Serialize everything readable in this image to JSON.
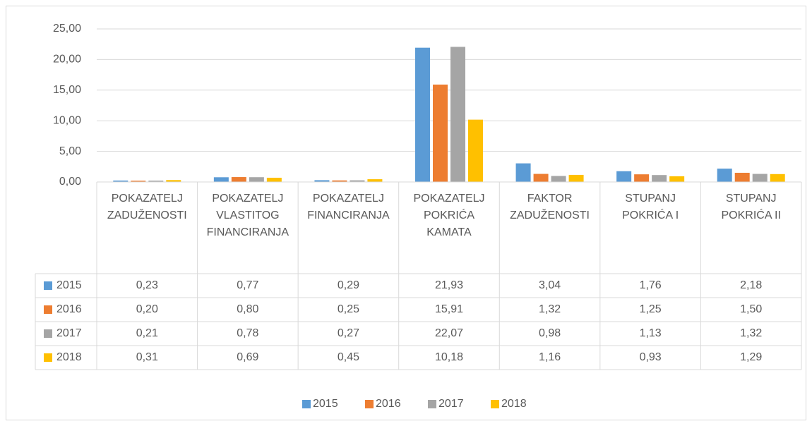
{
  "chart_data": {
    "type": "bar",
    "categories": [
      "POKAZATELJ ZADUŽENOSTI",
      "POKAZATELJ VLASTITOG FINANCIRANJA",
      "POKAZATELJ FINANCIRANJA",
      "POKAZATELJ POKRIĆA KAMATA",
      "FAKTOR ZADUŽENOSTI",
      "STUPANJ POKRIĆA I",
      "STUPANJ POKRIĆA II"
    ],
    "series": [
      {
        "name": "2015",
        "color": "#5b9bd5",
        "values": [
          0.23,
          0.77,
          0.29,
          21.93,
          3.04,
          1.76,
          2.18
        ],
        "value_labels": [
          "0,23",
          "0,77",
          "0,29",
          "21,93",
          "3,04",
          "1,76",
          "2,18"
        ]
      },
      {
        "name": "2016",
        "color": "#ed7d31",
        "values": [
          0.2,
          0.8,
          0.25,
          15.91,
          1.32,
          1.25,
          1.5
        ],
        "value_labels": [
          "0,20",
          "0,80",
          "0,25",
          "15,91",
          "1,32",
          "1,25",
          "1,50"
        ]
      },
      {
        "name": "2017",
        "color": "#a5a5a5",
        "values": [
          0.21,
          0.78,
          0.27,
          22.07,
          0.98,
          1.13,
          1.32
        ],
        "value_labels": [
          "0,21",
          "0,78",
          "0,27",
          "22,07",
          "0,98",
          "1,13",
          "1,32"
        ]
      },
      {
        "name": "2018",
        "color": "#ffc000",
        "values": [
          0.31,
          0.69,
          0.45,
          10.18,
          1.16,
          0.93,
          1.29
        ],
        "value_labels": [
          "0,31",
          "0,69",
          "0,45",
          "10,18",
          "1,16",
          "0,93",
          "1,29"
        ]
      }
    ],
    "ylim": [
      0,
      25
    ],
    "yticks": [
      {
        "value": 0,
        "label": "0,00"
      },
      {
        "value": 5,
        "label": "5,00"
      },
      {
        "value": 10,
        "label": "10,00"
      },
      {
        "value": 15,
        "label": "15,00"
      },
      {
        "value": 20,
        "label": "20,00"
      },
      {
        "value": 25,
        "label": "25,00"
      }
    ],
    "grid": true,
    "legend": "bottom"
  }
}
